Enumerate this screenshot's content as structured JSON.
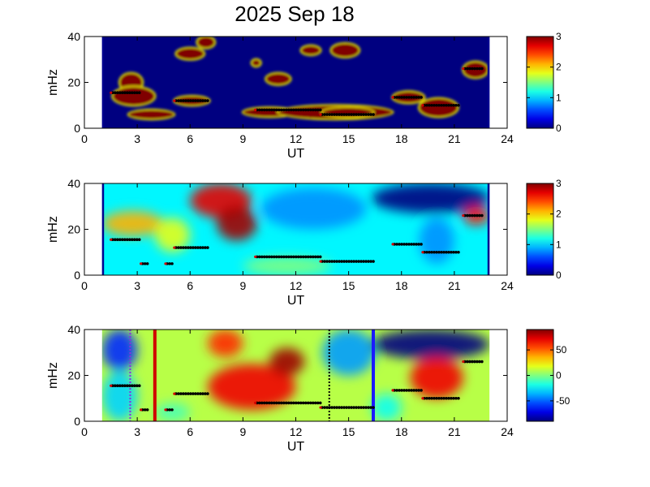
{
  "title": "2025 Sep 18",
  "chart_data": [
    {
      "type": "heatmap",
      "panel": "top",
      "xlabel": "UT",
      "ylabel": "mHz",
      "xlim": [
        0,
        24
      ],
      "ylim": [
        0,
        40
      ],
      "xticks": [
        0,
        3,
        6,
        9,
        12,
        15,
        18,
        21,
        24
      ],
      "yticks": [
        0,
        20,
        40
      ],
      "data_span_ut": [
        1,
        23
      ],
      "colorbar": {
        "range": [
          0,
          3
        ],
        "ticks": [
          0,
          1,
          2,
          3
        ],
        "colormap": "jet"
      },
      "background_level": 0,
      "blobs": [
        {
          "ut": [
            2.0,
            3.3
          ],
          "mhz": [
            16,
            24
          ],
          "level": 3
        },
        {
          "ut": [
            1.6,
            4.0
          ],
          "mhz": [
            10,
            18
          ],
          "level": 3
        },
        {
          "ut": [
            2.5,
            5.1
          ],
          "mhz": [
            4,
            8
          ],
          "level": 3
        },
        {
          "ut": [
            5.1,
            7.1
          ],
          "mhz": [
            10,
            14
          ],
          "level": 3
        },
        {
          "ut": [
            5.2,
            6.8
          ],
          "mhz": [
            30,
            35
          ],
          "level": 3
        },
        {
          "ut": [
            6.4,
            7.4
          ],
          "mhz": [
            35,
            40
          ],
          "level": 3
        },
        {
          "ut": [
            9.0,
            12.0
          ],
          "mhz": [
            5,
            9
          ],
          "level": 3
        },
        {
          "ut": [
            11.0,
            17.5
          ],
          "mhz": [
            4,
            10
          ],
          "level": 3
        },
        {
          "ut": [
            13.5,
            16.4
          ],
          "mhz": [
            5,
            9
          ],
          "level": 3
        },
        {
          "ut": [
            10.3,
            11.7
          ],
          "mhz": [
            19,
            24
          ],
          "level": 3
        },
        {
          "ut": [
            12.3,
            13.4
          ],
          "mhz": [
            32,
            36
          ],
          "level": 3
        },
        {
          "ut": [
            14.0,
            15.6
          ],
          "mhz": [
            31,
            37
          ],
          "level": 3
        },
        {
          "ut": [
            17.5,
            19.3
          ],
          "mhz": [
            11,
            16
          ],
          "level": 3
        },
        {
          "ut": [
            19.0,
            21.2
          ],
          "mhz": [
            5,
            13
          ],
          "level": 3
        },
        {
          "ut": [
            21.5,
            22.9
          ],
          "mhz": [
            22,
            29
          ],
          "level": 3
        },
        {
          "ut": [
            9.5,
            10.0
          ],
          "mhz": [
            27,
            30
          ],
          "level": 3
        }
      ],
      "peaks": [
        {
          "ut": [
            1.6,
            3.2
          ],
          "mhz": 15.5
        },
        {
          "ut": [
            5.2,
            7.0
          ],
          "mhz": 12.0
        },
        {
          "ut": [
            9.8,
            13.5
          ],
          "mhz": 8.0
        },
        {
          "ut": [
            13.5,
            16.5
          ],
          "mhz": 6.0
        },
        {
          "ut": [
            17.6,
            19.2
          ],
          "mhz": 13.5
        },
        {
          "ut": [
            19.3,
            21.3
          ],
          "mhz": 10.0
        },
        {
          "ut": [
            21.6,
            22.7
          ],
          "mhz": 26.0
        }
      ]
    },
    {
      "type": "heatmap",
      "panel": "middle",
      "xlabel": "UT",
      "ylabel": "mHz",
      "xlim": [
        0,
        24
      ],
      "ylim": [
        0,
        40
      ],
      "xticks": [
        0,
        3,
        6,
        9,
        12,
        15,
        18,
        21,
        24
      ],
      "yticks": [
        0,
        20,
        40
      ],
      "data_span_ut": [
        1,
        23
      ],
      "colorbar": {
        "range": [
          0,
          3
        ],
        "ticks": [
          0,
          1,
          2,
          3
        ],
        "colormap": "jet"
      },
      "background_level": 1.1,
      "blobs": [
        {
          "ut": [
            6.0,
            9.5
          ],
          "mhz": [
            25,
            40
          ],
          "level": 2.7
        },
        {
          "ut": [
            7.5,
            9.8
          ],
          "mhz": [
            15,
            30
          ],
          "level": 2.9
        },
        {
          "ut": [
            1.0,
            4.5
          ],
          "mhz": [
            17,
            28
          ],
          "level": 2.1
        },
        {
          "ut": [
            4.0,
            6.0
          ],
          "mhz": [
            10,
            25
          ],
          "level": 1.8
        },
        {
          "ut": [
            10.0,
            16.0
          ],
          "mhz": [
            20,
            38
          ],
          "level": 0.8
        },
        {
          "ut": [
            16.3,
            23.0
          ],
          "mhz": [
            27,
            40
          ],
          "level": 0.0
        },
        {
          "ut": [
            19.0,
            21.0
          ],
          "mhz": [
            5,
            25
          ],
          "level": 0.8
        },
        {
          "ut": [
            21.5,
            23.0
          ],
          "mhz": [
            22,
            30
          ],
          "level": 2.6
        },
        {
          "ut": [
            9.0,
            14.0
          ],
          "mhz": [
            0,
            8
          ],
          "level": 1.5
        }
      ],
      "peaks": [
        {
          "ut": [
            1.6,
            3.2
          ],
          "mhz": 15.5
        },
        {
          "ut": [
            3.3,
            3.6
          ],
          "mhz": 5.0
        },
        {
          "ut": [
            4.7,
            5.0
          ],
          "mhz": 5.0
        },
        {
          "ut": [
            5.2,
            7.0
          ],
          "mhz": 12.0
        },
        {
          "ut": [
            9.8,
            13.5
          ],
          "mhz": 8.0
        },
        {
          "ut": [
            13.5,
            16.5
          ],
          "mhz": 6.0
        },
        {
          "ut": [
            17.6,
            19.2
          ],
          "mhz": 13.5
        },
        {
          "ut": [
            19.3,
            21.3
          ],
          "mhz": 10.0
        },
        {
          "ut": [
            21.6,
            22.7
          ],
          "mhz": 26.0
        }
      ]
    },
    {
      "type": "heatmap",
      "panel": "bottom",
      "xlabel": "UT",
      "ylabel": "mHz",
      "xlim": [
        0,
        24
      ],
      "ylim": [
        0,
        40
      ],
      "xticks": [
        0,
        3,
        6,
        9,
        12,
        15,
        18,
        21,
        24
      ],
      "yticks": [
        0,
        20,
        40
      ],
      "data_span_ut": [
        1,
        23
      ],
      "colorbar": {
        "range": [
          -90,
          90
        ],
        "ticks": [
          -50,
          0,
          50
        ],
        "colormap": "jet"
      },
      "background_value": 10,
      "blobs": [
        {
          "ut": [
            1.0,
            3.0
          ],
          "mhz": [
            22,
            40
          ],
          "value": -60
        },
        {
          "ut": [
            1.0,
            3.0
          ],
          "mhz": [
            0,
            22
          ],
          "value": -30
        },
        {
          "ut": [
            7.0,
            12.0
          ],
          "mhz": [
            5,
            25
          ],
          "value": 70
        },
        {
          "ut": [
            10.5,
            12.5
          ],
          "mhz": [
            20,
            32
          ],
          "value": 85
        },
        {
          "ut": [
            7.0,
            9.0
          ],
          "mhz": [
            28,
            40
          ],
          "value": 60
        },
        {
          "ut": [
            13.5,
            16.5
          ],
          "mhz": [
            20,
            40
          ],
          "value": -40
        },
        {
          "ut": [
            16.3,
            23.0
          ],
          "mhz": [
            27,
            40
          ],
          "value": -90
        },
        {
          "ut": [
            18.5,
            21.5
          ],
          "mhz": [
            10,
            28
          ],
          "value": 70
        },
        {
          "ut": [
            16.3,
            18.0
          ],
          "mhz": [
            0,
            12
          ],
          "value": -20
        },
        {
          "ut": [
            4.0,
            6.0
          ],
          "mhz": [
            0,
            8
          ],
          "value": -10
        }
      ],
      "vlines": [
        {
          "ut": 2.6,
          "color": "#8a2be2",
          "style": "dotted"
        },
        {
          "ut": 4.0,
          "color": "#d00000",
          "style": "solid"
        },
        {
          "ut": 13.9,
          "color": "#000000",
          "style": "dotted"
        },
        {
          "ut": 16.4,
          "color": "#1a1aff",
          "style": "solid"
        }
      ],
      "peaks": [
        {
          "ut": [
            1.6,
            3.2
          ],
          "mhz": 15.5
        },
        {
          "ut": [
            3.3,
            3.6
          ],
          "mhz": 5.0
        },
        {
          "ut": [
            4.7,
            5.0
          ],
          "mhz": 5.0
        },
        {
          "ut": [
            5.2,
            7.0
          ],
          "mhz": 12.0
        },
        {
          "ut": [
            9.8,
            13.5
          ],
          "mhz": 8.0
        },
        {
          "ut": [
            13.5,
            16.5
          ],
          "mhz": 6.0
        },
        {
          "ut": [
            17.6,
            19.2
          ],
          "mhz": 13.5
        },
        {
          "ut": [
            19.3,
            21.3
          ],
          "mhz": 10.0
        },
        {
          "ut": [
            21.6,
            22.7
          ],
          "mhz": 26.0
        }
      ]
    }
  ]
}
